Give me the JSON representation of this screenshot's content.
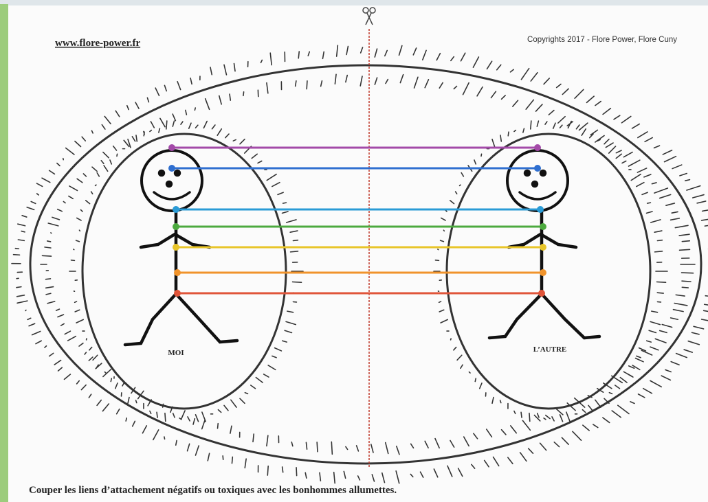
{
  "header": {
    "website": "www.flore-power.fr",
    "copyright": "Copyrights 2017 - Flore Power, Flore Cuny"
  },
  "figures": [
    {
      "label": "MOI"
    },
    {
      "label": "L’AUTRE"
    }
  ],
  "caption": "Couper les liens d’attachement négatifs ou toxiques avec les bonhommes allumettes."
}
